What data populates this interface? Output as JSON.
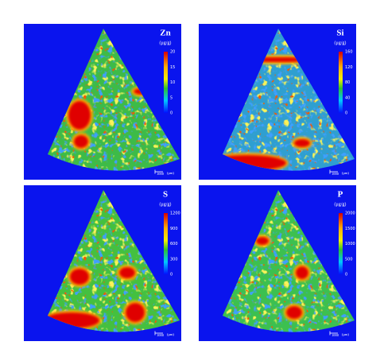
{
  "panels": [
    {
      "element": "Zn",
      "unit": "(μg/g)",
      "colorbar_ticks": [
        "20",
        "15",
        "10",
        "5",
        "0"
      ],
      "scale_value": "1000",
      "scale_unit": "(μm)"
    },
    {
      "element": "Si",
      "unit": "(μg/g)",
      "colorbar_ticks": [
        "160",
        "120",
        "80",
        "40",
        "0"
      ],
      "scale_value": "1000",
      "scale_unit": "(μm)"
    },
    {
      "element": "S",
      "unit": "(μg/g)",
      "colorbar_ticks": [
        "1200",
        "900",
        "600",
        "300",
        "0"
      ],
      "scale_value": "1000",
      "scale_unit": "(μm)"
    },
    {
      "element": "P",
      "unit": "(μg/g)",
      "colorbar_ticks": [
        "2000",
        "1500",
        "1000",
        "500",
        "0"
      ],
      "scale_value": "1000",
      "scale_unit": "(μm)"
    }
  ]
}
